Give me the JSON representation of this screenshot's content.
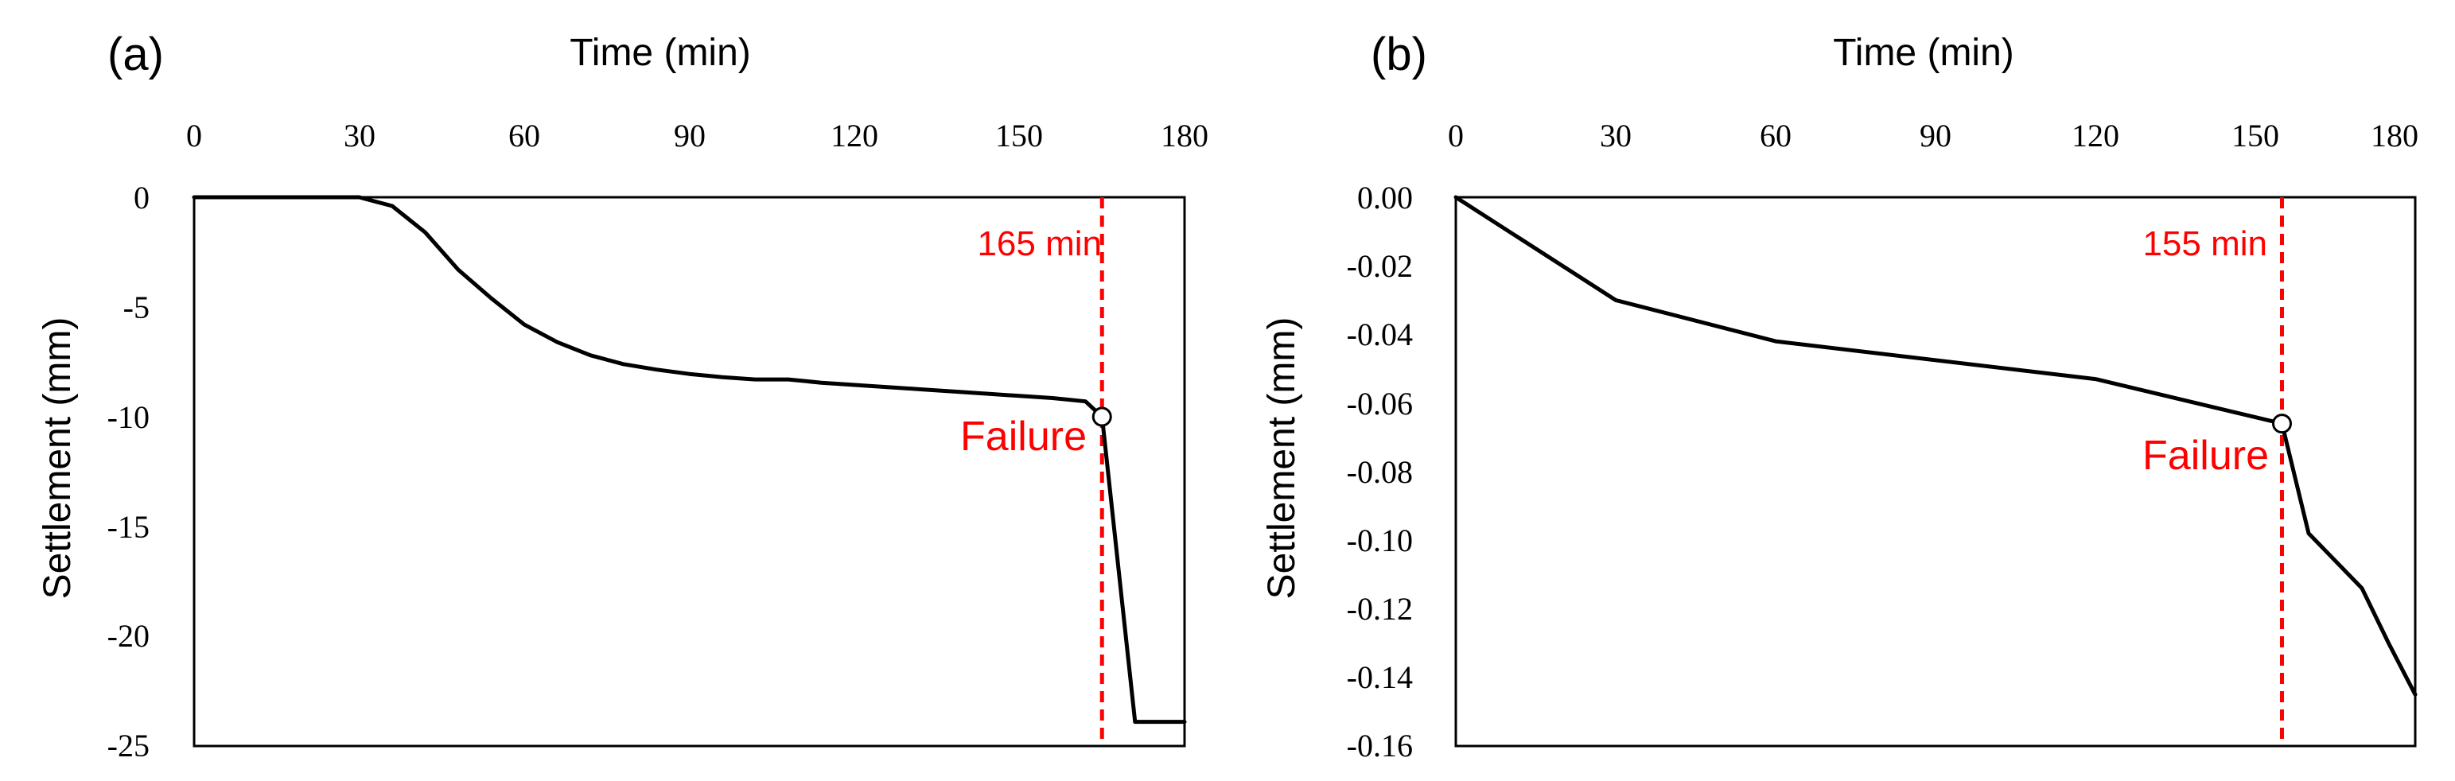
{
  "chart_data": [
    {
      "type": "line",
      "panel_label": "(a)",
      "xlabel": "Time (min)",
      "ylabel": "Settlement (mm)",
      "x_axis_position": "top",
      "xlim": [
        0,
        180
      ],
      "ylim": [
        -25,
        0
      ],
      "xticks": [
        0,
        30,
        60,
        90,
        120,
        150,
        180
      ],
      "xtick_labels": [
        "0",
        "30",
        "60",
        "90",
        "120",
        "150",
        "180"
      ],
      "yticks": [
        0,
        -5,
        -10,
        -15,
        -20,
        -25
      ],
      "ytick_labels": [
        "0",
        "-5",
        "-10",
        "-15",
        "-20",
        "-25"
      ],
      "series": [
        {
          "name": "Settlement",
          "color": "#000000",
          "x": [
            0,
            30,
            36,
            42,
            48,
            54,
            60,
            66,
            72,
            78,
            84,
            90,
            96,
            102,
            108,
            114,
            120,
            126,
            132,
            138,
            144,
            150,
            156,
            162,
            165,
            171,
            177,
            180
          ],
          "y": [
            0,
            0,
            -0.4,
            -1.6,
            -3.3,
            -4.6,
            -5.8,
            -6.6,
            -7.2,
            -7.6,
            -7.85,
            -8.05,
            -8.2,
            -8.3,
            -8.3,
            -8.45,
            -8.55,
            -8.65,
            -8.75,
            -8.85,
            -8.95,
            -9.05,
            -9.15,
            -9.3,
            -10.0,
            -23.9,
            -23.9,
            -23.9
          ]
        }
      ],
      "vline": {
        "x": 165,
        "color": "#ff0000",
        "label": "165 min"
      },
      "failure_point": {
        "x": 165,
        "y": -10.0,
        "label": "Failure",
        "label_color": "#ff0000"
      }
    },
    {
      "type": "line",
      "panel_label": "(b)",
      "xlabel": "Time (min)",
      "ylabel": "Settlement (mm)",
      "x_axis_position": "top",
      "xlim": [
        0,
        180
      ],
      "ylim": [
        -0.16,
        0
      ],
      "xticks": [
        0,
        30,
        60,
        90,
        120,
        150,
        180
      ],
      "xtick_labels": [
        "0",
        "30",
        "60",
        "90",
        "120",
        "150",
        "180"
      ],
      "yticks": [
        0,
        -0.02,
        -0.04,
        -0.06,
        -0.08,
        -0.1,
        -0.12,
        -0.14,
        -0.16
      ],
      "ytick_labels": [
        "0.00",
        "-0.02",
        "-0.04",
        "-0.06",
        "-0.08",
        "-0.10",
        "-0.12",
        "-0.14",
        "-0.16"
      ],
      "series": [
        {
          "name": "Settlement",
          "color": "#000000",
          "x": [
            0,
            30,
            60,
            120,
            155,
            160,
            170,
            175,
            180
          ],
          "y": [
            0,
            -0.03,
            -0.042,
            -0.053,
            -0.066,
            -0.098,
            -0.114,
            -0.13,
            -0.145
          ]
        }
      ],
      "vline": {
        "x": 155,
        "color": "#ff0000",
        "label": "155 min"
      },
      "failure_point": {
        "x": 155,
        "y": -0.066,
        "label": "Failure",
        "label_color": "#ff0000"
      }
    }
  ]
}
